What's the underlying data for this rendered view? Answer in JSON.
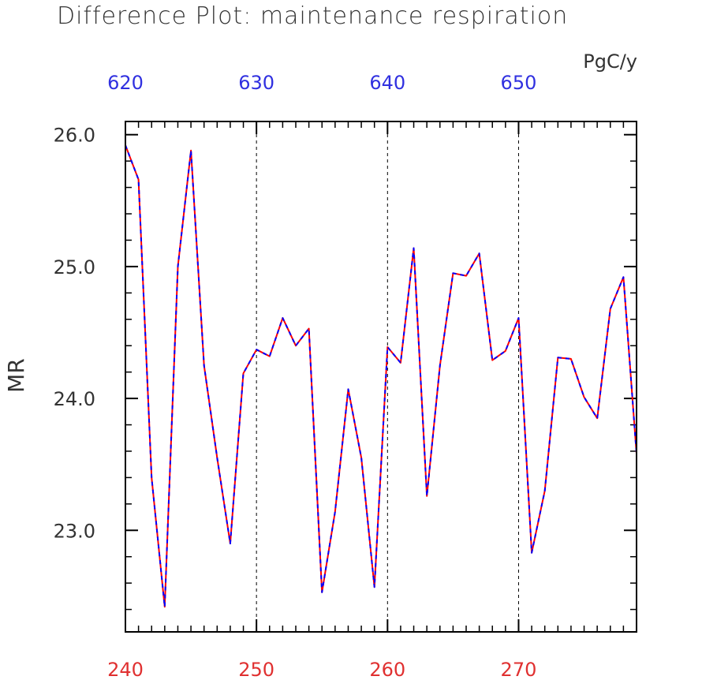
{
  "chart_data": {
    "type": "line",
    "title": "Difference Plot: maintenance respiration",
    "unit_label": "PgC/y",
    "ylabel": "MR",
    "xlabel": "",
    "xlim": [
      240,
      279
    ],
    "ylim": [
      22.23,
      26.1
    ],
    "top_xlim": [
      620,
      659
    ],
    "yticks": [
      23.0,
      24.0,
      25.0,
      26.0
    ],
    "ytick_labels": [
      "23.0",
      "24.0",
      "25.0",
      "26.0"
    ],
    "xticks_bottom": [
      240,
      250,
      260,
      270
    ],
    "xtick_labels_bottom": [
      "240",
      "250",
      "260",
      "270"
    ],
    "xticks_top": [
      620,
      630,
      640,
      650
    ],
    "xtick_labels_top": [
      "620",
      "630",
      "640",
      "650"
    ],
    "grid": "dashed vertical lines at 250, 260, 270",
    "colors": {
      "bottom_axis": "#e03030",
      "top_axis": "#3030e0",
      "series_a": "#ff0000",
      "series_b": "#0000ff",
      "frame": "#000000"
    },
    "series": [
      {
        "color": "#ff0000",
        "dash": "solid",
        "x": [
          240,
          241,
          242,
          243,
          244,
          245,
          246,
          247,
          248,
          249,
          250,
          251,
          252,
          253,
          254,
          255,
          256,
          257,
          258,
          259,
          260,
          261,
          262,
          263,
          264,
          265,
          266,
          267,
          268,
          269,
          270,
          271,
          272,
          273,
          274,
          275,
          276,
          277,
          278,
          279
        ],
        "values": [
          25.92,
          25.66,
          23.4,
          22.42,
          25.0,
          25.88,
          24.25,
          23.55,
          22.9,
          24.19,
          24.37,
          24.32,
          24.61,
          24.4,
          24.53,
          22.53,
          23.14,
          24.07,
          23.55,
          22.57,
          24.39,
          24.27,
          25.14,
          23.26,
          24.25,
          24.95,
          24.93,
          25.1,
          24.29,
          24.36,
          24.61,
          22.83,
          23.3,
          24.31,
          24.3,
          24.01,
          23.85,
          24.68,
          24.92,
          23.58
        ]
      },
      {
        "color": "#0000ff",
        "dash": "dashed",
        "x": [
          240,
          241,
          242,
          243,
          244,
          245,
          246,
          247,
          248,
          249,
          250,
          251,
          252,
          253,
          254,
          255,
          256,
          257,
          258,
          259,
          260,
          261,
          262,
          263,
          264,
          265,
          266,
          267,
          268,
          269,
          270,
          271,
          272,
          273,
          274,
          275,
          276,
          277,
          278,
          279
        ],
        "values": [
          25.92,
          25.66,
          23.4,
          22.42,
          25.0,
          25.88,
          24.25,
          23.55,
          22.9,
          24.19,
          24.37,
          24.32,
          24.61,
          24.4,
          24.53,
          22.53,
          23.14,
          24.07,
          23.55,
          22.57,
          24.39,
          24.27,
          25.14,
          23.26,
          24.25,
          24.95,
          24.93,
          25.1,
          24.29,
          24.36,
          24.61,
          22.83,
          23.3,
          24.31,
          24.3,
          24.01,
          23.85,
          24.68,
          24.92,
          23.58
        ]
      }
    ]
  }
}
